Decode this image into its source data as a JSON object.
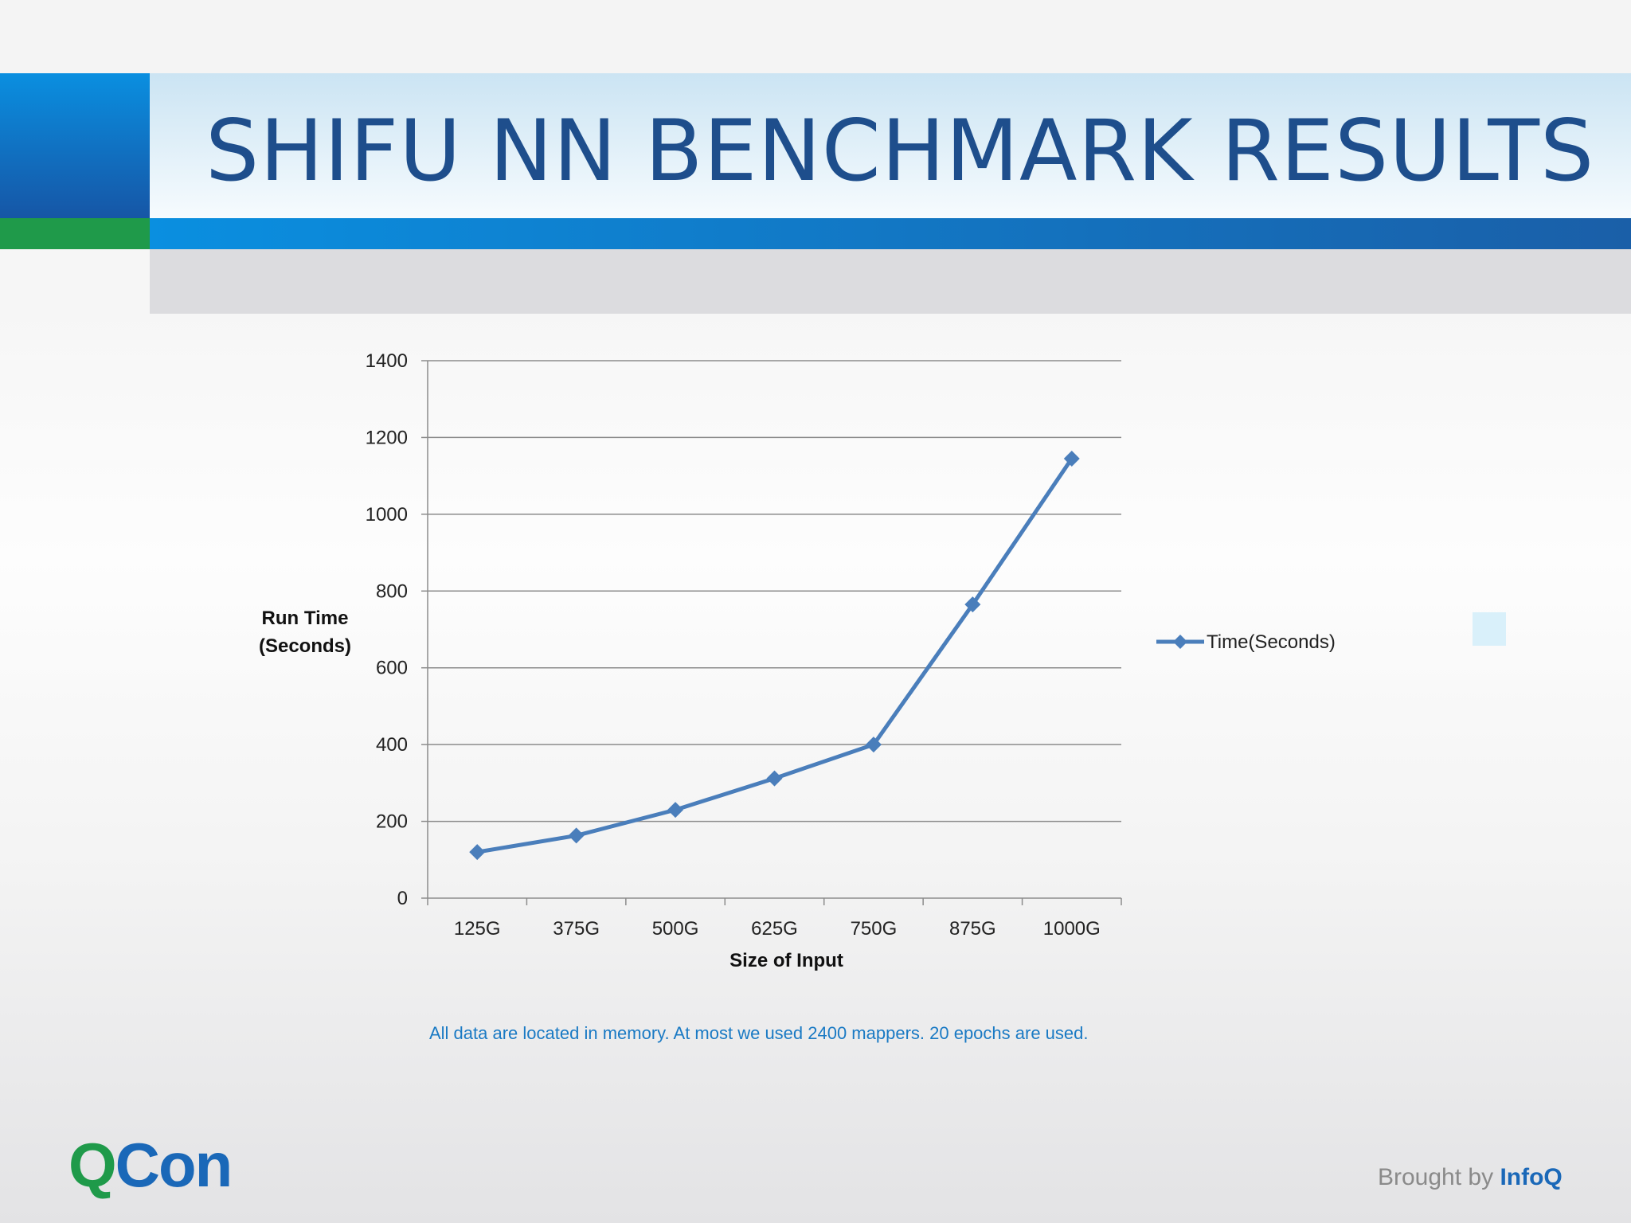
{
  "slide": {
    "title": "SHIFU NN BENCHMARK RESULTS",
    "footnote": "All data are located in memory. At most we used 2400 mappers. 20 epochs are used."
  },
  "branding": {
    "qcon_q": "Q",
    "qcon_rest": "Con",
    "brought_by": "Brought by ",
    "infoq": "InfoQ"
  },
  "chart_data": {
    "type": "line",
    "title": "",
    "xlabel": "Size of Input",
    "ylabel_lines": [
      "Run Time",
      "(Seconds)"
    ],
    "ylim": [
      0,
      1400
    ],
    "yticks": [
      0,
      200,
      400,
      600,
      800,
      1000,
      1200,
      1400
    ],
    "grid": true,
    "legend_position": "right",
    "categories": [
      "125G",
      "375G",
      "500G",
      "625G",
      "750G",
      "875G",
      "1000G"
    ],
    "series": [
      {
        "name": "Time(Seconds)",
        "color": "#4a7ebb",
        "marker": "diamond",
        "values": [
          120,
          163,
          230,
          312,
          400,
          765,
          1145
        ]
      }
    ]
  }
}
